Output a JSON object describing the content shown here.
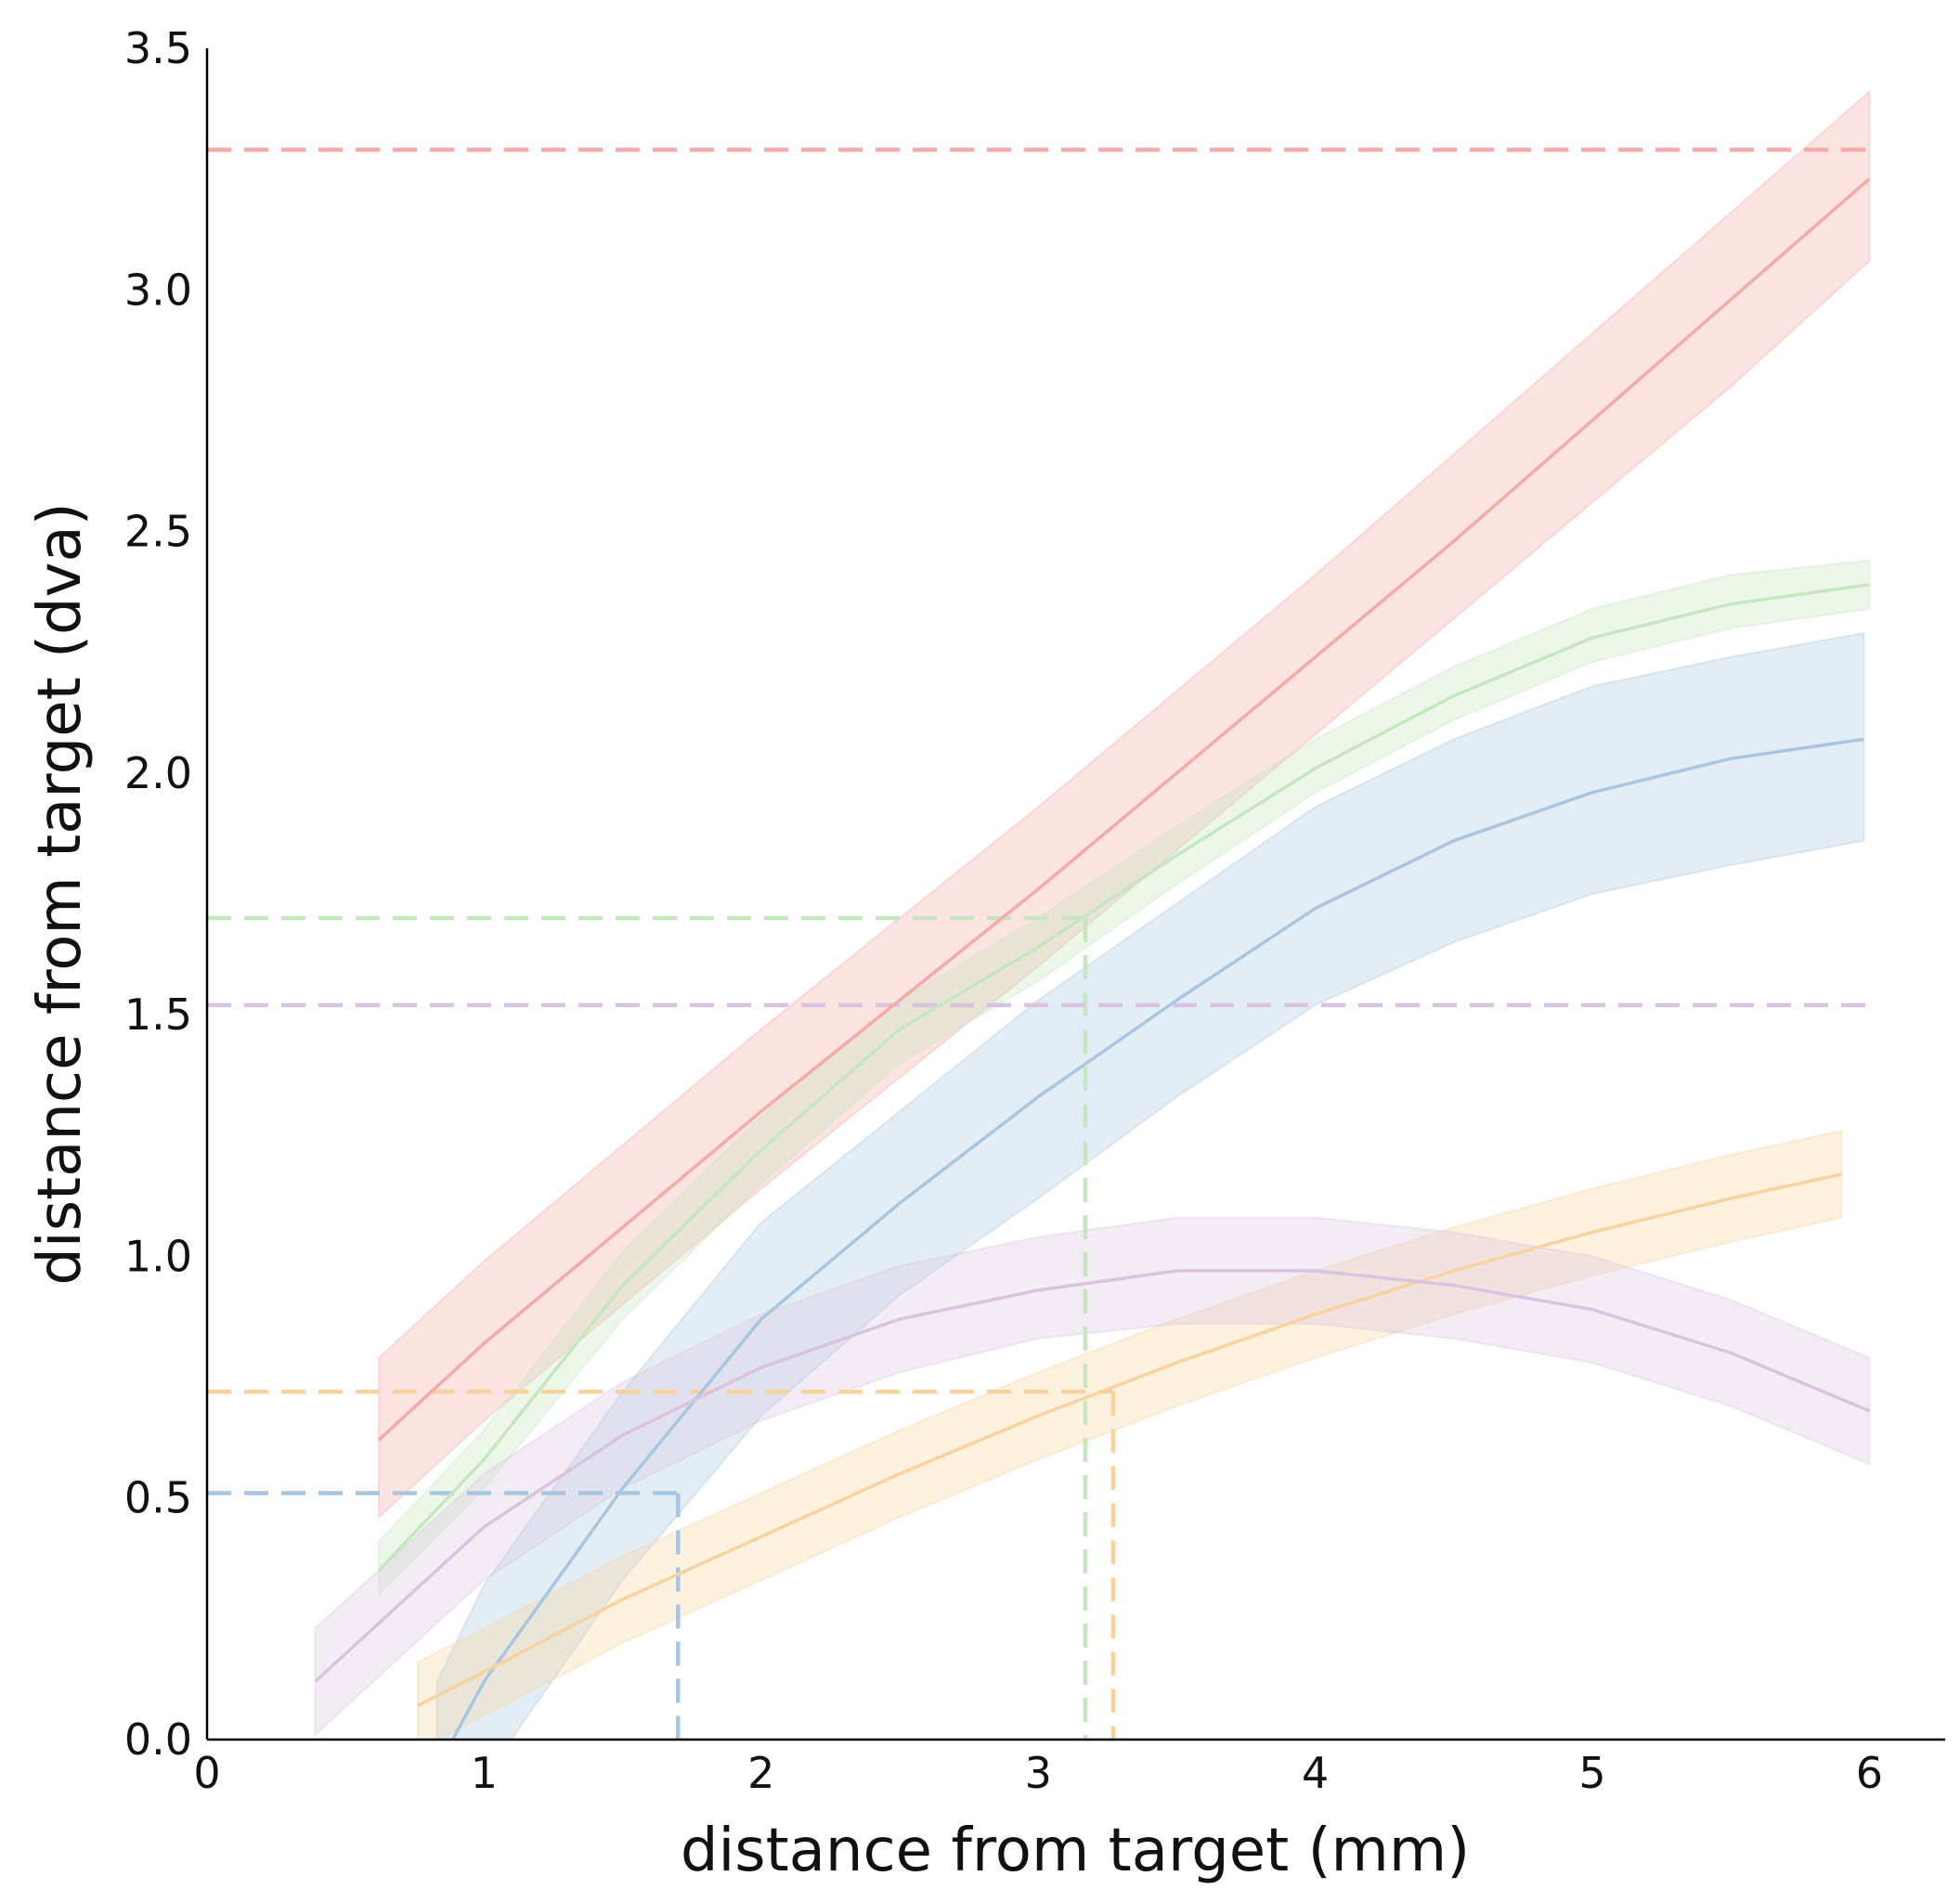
{
  "chart_data": {
    "type": "line",
    "title": "",
    "xlabel": "distance from target (mm)",
    "ylabel": "distance from target (dva)",
    "xlim": [
      0,
      6.27
    ],
    "ylim": [
      0,
      3.5
    ],
    "xticks": [
      0,
      1,
      2,
      3,
      4,
      5,
      6
    ],
    "yticks": [
      0.0,
      0.5,
      1.0,
      1.5,
      2.0,
      2.5,
      3.0,
      3.5
    ],
    "xtick_labels": [
      "0",
      "1",
      "2",
      "3",
      "4",
      "5",
      "6"
    ],
    "ytick_labels": [
      "0.0",
      "0.5",
      "1.0",
      "1.5",
      "2.0",
      "2.5",
      "3.0",
      "3.5"
    ],
    "grid": false,
    "legend": "none",
    "series": [
      {
        "color": "#f4aaa6",
        "x": [
          0.62,
          1.0,
          1.5,
          2.0,
          2.5,
          3.0,
          3.5,
          4.0,
          4.5,
          5.0,
          5.5,
          6.0
        ],
        "y": [
          0.62,
          0.82,
          1.06,
          1.3,
          1.53,
          1.76,
          2.0,
          2.24,
          2.48,
          2.73,
          2.98,
          3.23
        ],
        "lower": [
          0.46,
          0.66,
          0.9,
          1.14,
          1.37,
          1.6,
          1.84,
          2.08,
          2.32,
          2.56,
          2.8,
          3.06
        ],
        "upper": [
          0.79,
          0.99,
          1.23,
          1.47,
          1.7,
          1.93,
          2.17,
          2.41,
          2.66,
          2.91,
          3.16,
          3.41
        ],
        "reference_y": 3.29
      },
      {
        "color": "#c5e6bf",
        "x": [
          0.62,
          1.0,
          1.5,
          2.0,
          2.5,
          3.0,
          3.5,
          4.0,
          4.5,
          5.0,
          5.5,
          6.0
        ],
        "y": [
          0.35,
          0.58,
          0.94,
          1.22,
          1.47,
          1.64,
          1.83,
          2.01,
          2.16,
          2.28,
          2.35,
          2.39
        ],
        "lower": [
          0.3,
          0.52,
          0.87,
          1.15,
          1.4,
          1.57,
          1.77,
          1.96,
          2.11,
          2.23,
          2.3,
          2.34
        ],
        "upper": [
          0.41,
          0.64,
          1.01,
          1.29,
          1.53,
          1.7,
          1.89,
          2.07,
          2.22,
          2.34,
          2.41,
          2.44
        ],
        "reference_x": 3.17,
        "reference_y": 1.7
      },
      {
        "color": "#a9c6e0",
        "x": [
          0.83,
          1.0,
          1.5,
          2.0,
          2.5,
          3.0,
          3.5,
          4.0,
          4.5,
          5.0,
          5.5,
          5.98
        ],
        "y": [
          -0.06,
          0.12,
          0.52,
          0.87,
          1.11,
          1.33,
          1.53,
          1.72,
          1.86,
          1.96,
          2.03,
          2.07
        ],
        "lower": [
          -0.23,
          -0.08,
          0.33,
          0.67,
          0.92,
          1.12,
          1.33,
          1.52,
          1.65,
          1.75,
          1.81,
          1.86
        ],
        "upper": [
          0.12,
          0.32,
          0.72,
          1.07,
          1.3,
          1.53,
          1.73,
          1.93,
          2.07,
          2.18,
          2.24,
          2.29
        ],
        "reference_x": 1.7,
        "reference_y": 0.51
      },
      {
        "color": "#f9d29e",
        "x": [
          0.76,
          1.0,
          1.5,
          2.0,
          2.5,
          3.0,
          3.5,
          4.0,
          4.5,
          5.0,
          5.5,
          5.9
        ],
        "y": [
          0.07,
          0.14,
          0.29,
          0.42,
          0.55,
          0.67,
          0.78,
          0.88,
          0.97,
          1.05,
          1.12,
          1.17
        ],
        "lower": [
          -0.02,
          0.05,
          0.2,
          0.33,
          0.46,
          0.58,
          0.69,
          0.79,
          0.88,
          0.96,
          1.03,
          1.08
        ],
        "upper": [
          0.16,
          0.23,
          0.38,
          0.51,
          0.64,
          0.76,
          0.87,
          0.97,
          1.06,
          1.14,
          1.21,
          1.26
        ],
        "reference_x": 3.27,
        "reference_y": 0.72
      },
      {
        "color": "#d9c3e0",
        "x": [
          0.39,
          1.0,
          1.5,
          2.0,
          2.5,
          3.0,
          3.5,
          4.0,
          4.5,
          5.0,
          5.5,
          6.0
        ],
        "y": [
          0.12,
          0.44,
          0.63,
          0.77,
          0.87,
          0.93,
          0.97,
          0.97,
          0.94,
          0.89,
          0.8,
          0.68
        ],
        "lower": [
          0.01,
          0.33,
          0.52,
          0.66,
          0.76,
          0.83,
          0.86,
          0.86,
          0.83,
          0.78,
          0.69,
          0.57
        ],
        "upper": [
          0.23,
          0.55,
          0.74,
          0.88,
          0.98,
          1.04,
          1.08,
          1.08,
          1.05,
          1.0,
          0.91,
          0.79
        ],
        "reference_y": 1.52
      }
    ]
  }
}
